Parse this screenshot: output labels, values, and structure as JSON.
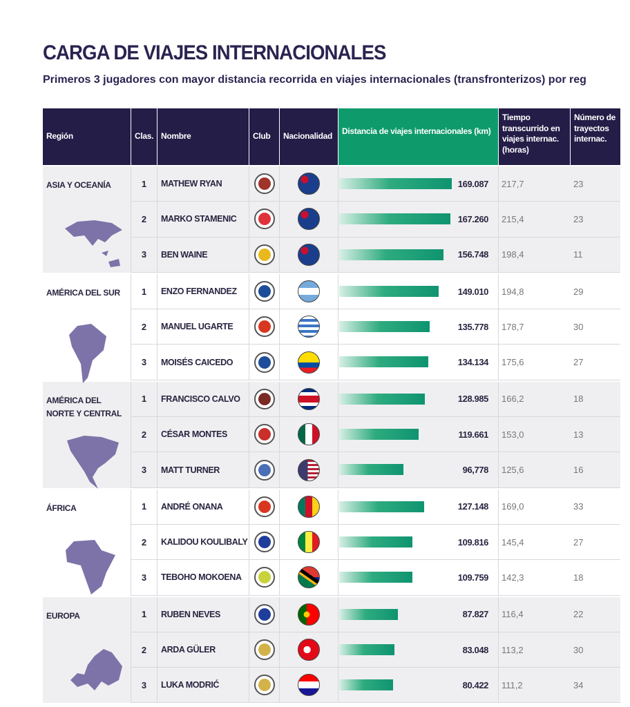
{
  "title": "CARGA DE VIAJES INTERNACIONALES",
  "subtitle": "Primeros 3 jugadores con mayor distancia recorrida en viajes internacionales (transfronterizos) por reg",
  "colors": {
    "header": "#231d47",
    "accent": "#0f9a6c",
    "map": "#7d73a8"
  },
  "headers": {
    "region": "Región",
    "rank": "Clas.",
    "name": "Nombre",
    "club": "Club",
    "nationality": "Nacionalidad",
    "distance": "Distancia de viajes internacionales (km)",
    "time": "Tiempo transcurrido en viajes internac. (horas)",
    "trips": "Número de trayectos internac."
  },
  "chart_data": {
    "type": "table",
    "bar_column": "distance_km",
    "regions": [
      {
        "region": "ASIA Y OCEANÍA",
        "map_icon": "asia-oceania-map",
        "rows": [
          {
            "rank": "1",
            "name": "MATHEW RYAN",
            "club_icon": "as-roma-badge",
            "flag": "australia",
            "distance_km": 169087,
            "distance_label": "169.087",
            "time": "217,7",
            "trips": "23"
          },
          {
            "rank": "2",
            "name": "MARKO STAMENIC",
            "club_icon": "olympiacos-badge",
            "flag": "new-zealand",
            "distance_km": 167260,
            "distance_label": "167.260",
            "time": "215,4",
            "trips": "23"
          },
          {
            "rank": "3",
            "name": "BEN WAINE",
            "club_icon": "plymouth-badge",
            "flag": "new-zealand",
            "distance_km": 156748,
            "distance_label": "156.748",
            "time": "198,4",
            "trips": "11"
          }
        ]
      },
      {
        "region": "AMÉRICA DEL SUR",
        "map_icon": "south-america-map",
        "rows": [
          {
            "rank": "1",
            "name": "ENZO FERNANDEZ",
            "club_icon": "chelsea-badge",
            "flag": "argentina",
            "distance_km": 149010,
            "distance_label": "149.010",
            "time": "194,8",
            "trips": "29"
          },
          {
            "rank": "2",
            "name": "MANUEL UGARTE",
            "club_icon": "manchester-united-badge",
            "flag": "uruguay",
            "distance_km": 135778,
            "distance_label": "135.778",
            "time": "178,7",
            "trips": "30"
          },
          {
            "rank": "3",
            "name": "MOISÉS CAICEDO",
            "club_icon": "chelsea-badge",
            "flag": "ecuador",
            "distance_km": 134134,
            "distance_label": "134.134",
            "time": "175,6",
            "trips": "27"
          }
        ]
      },
      {
        "region": "AMÉRICA DEL NORTE Y CENTRAL",
        "map_icon": "north-america-map",
        "rows": [
          {
            "rank": "1",
            "name": "FRANCISCO CALVO",
            "club_icon": "saprissa-badge",
            "flag": "costa-rica",
            "distance_km": 128985,
            "distance_label": "128.985",
            "time": "166,2",
            "trips": "18"
          },
          {
            "rank": "2",
            "name": "CÉSAR MONTES",
            "club_icon": "lokomotiv-badge",
            "flag": "mexico",
            "distance_km": 119661,
            "distance_label": "119.661",
            "time": "153,0",
            "trips": "13"
          },
          {
            "rank": "3",
            "name": "MATT TURNER",
            "club_icon": "crystal-palace-badge",
            "flag": "usa",
            "distance_km": 96778,
            "distance_label": "96,778",
            "time": "125,6",
            "trips": "16"
          }
        ]
      },
      {
        "region": "ÁFRICA",
        "map_icon": "africa-map",
        "rows": [
          {
            "rank": "1",
            "name": "ANDRÉ ONANA",
            "club_icon": "manchester-united-badge",
            "flag": "cameroon",
            "distance_km": 127148,
            "distance_label": "127.148",
            "time": "169,0",
            "trips": "33"
          },
          {
            "rank": "2",
            "name": "KALIDOU KOULIBALY",
            "club_icon": "al-hilal-badge",
            "flag": "senegal",
            "distance_km": 109816,
            "distance_label": "109.816",
            "time": "145,4",
            "trips": "27"
          },
          {
            "rank": "3",
            "name": "TEBOHO MOKOENA",
            "club_icon": "mamelodi-sundowns-badge",
            "flag": "south-africa",
            "distance_km": 109759,
            "distance_label": "109.759",
            "time": "142,3",
            "trips": "18"
          }
        ]
      },
      {
        "region": "EUROPA",
        "map_icon": "europe-map",
        "rows": [
          {
            "rank": "1",
            "name": "RUBEN NEVES",
            "club_icon": "al-hilal-badge",
            "flag": "portugal",
            "distance_km": 87827,
            "distance_label": "87.827",
            "time": "116,4",
            "trips": "22"
          },
          {
            "rank": "2",
            "name": "ARDA GÜLER",
            "club_icon": "real-madrid-badge",
            "flag": "turkey",
            "distance_km": 83048,
            "distance_label": "83.048",
            "time": "113,2",
            "trips": "30"
          },
          {
            "rank": "3",
            "name": "LUKA MODRIĆ",
            "club_icon": "real-madrid-badge",
            "flag": "croatia",
            "distance_km": 80422,
            "distance_label": "80.422",
            "time": "111,2",
            "trips": "34"
          }
        ]
      }
    ]
  }
}
